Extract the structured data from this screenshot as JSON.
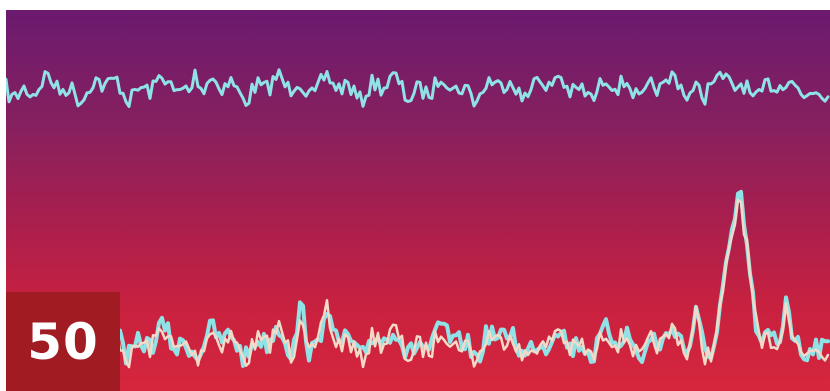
{
  "badge": {
    "number": "50",
    "background": "#a01b22",
    "text_color": "#ffffff"
  },
  "image": {
    "subject": "wave-trace-photo",
    "trace_colors": {
      "cyan": "#8fe3e6",
      "pale": "#f2d9c8"
    }
  }
}
